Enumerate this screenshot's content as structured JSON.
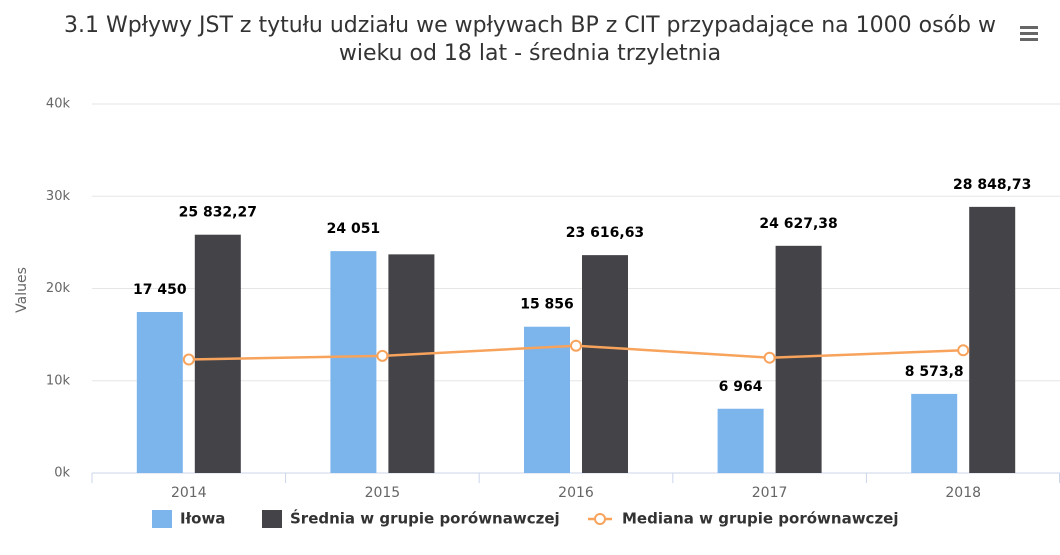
{
  "chart_data": {
    "type": "bar",
    "title": "3.1 Wpływy JST z tytułu udziału we wpływach BP z CIT przypadające na 1000 osób w wieku od 18 lat - średnia trzyletnia",
    "y_axis_label": "Values",
    "categories": [
      "2014",
      "2015",
      "2016",
      "2017",
      "2018"
    ],
    "series": [
      {
        "name": "Iłowa",
        "type": "bar",
        "color": "#7cb5ec",
        "values": [
          17450,
          24051,
          15856,
          6964,
          8573.8
        ],
        "value_labels": [
          "17 450",
          "24 051",
          "15 856",
          "6 964",
          "8 573,8"
        ]
      },
      {
        "name": "Średnia w grupie porównawczej",
        "type": "bar",
        "color": "#434348",
        "values": [
          25832.27,
          23700,
          23616.63,
          24627.38,
          28848.73
        ],
        "value_labels": [
          "25 832,27",
          null,
          "23 616,63",
          "24 627,38",
          "28 848,73"
        ]
      },
      {
        "name": "Mediana w grupie porównawczej",
        "type": "line",
        "color": "#f7a35c",
        "values": [
          12300,
          12700,
          13800,
          12500,
          13300
        ]
      }
    ],
    "ylim": [
      0,
      40000
    ],
    "yticks": [
      {
        "value": 0,
        "label": "0k"
      },
      {
        "value": 10000,
        "label": "10k"
      },
      {
        "value": 20000,
        "label": "20k"
      },
      {
        "value": 30000,
        "label": "30k"
      },
      {
        "value": 40000,
        "label": "40k"
      }
    ],
    "grid": true
  }
}
